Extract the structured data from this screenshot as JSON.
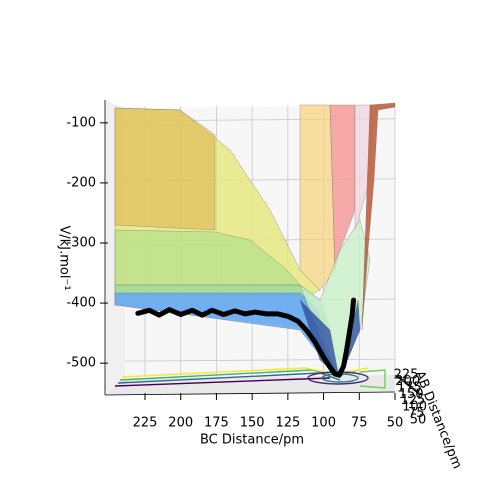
{
  "chart_data": {
    "type": "surface3d",
    "xlabel": "BC Distance/pm",
    "ylabel": "AB Distance/pm",
    "zlabel": "V/kJ.mol⁻¹",
    "xlim": [
      253,
      50
    ],
    "xticks": [
      225,
      200,
      175,
      150,
      125,
      100,
      75,
      50
    ],
    "yticks": [
      50,
      75,
      100,
      125,
      150,
      175,
      200,
      225
    ],
    "zlim": [
      -553,
      -62
    ],
    "zticks": [
      -100,
      -200,
      -300,
      -400,
      -500
    ],
    "trajectory": {
      "color": "#000000",
      "x": [
        230,
        222,
        215,
        208,
        200,
        192,
        185,
        178,
        170,
        162,
        155,
        148,
        140,
        132,
        125,
        118,
        112,
        106,
        100,
        96,
        92,
        89,
        86,
        84,
        82,
        80,
        79
      ],
      "values": [
        -417,
        -412,
        -420,
        -411,
        -419,
        -412,
        -420,
        -412,
        -419,
        -413,
        -418,
        -415,
        -418,
        -418,
        -422,
        -430,
        -445,
        -465,
        -490,
        -505,
        -518,
        -520,
        -505,
        -480,
        -450,
        -420,
        -395
      ]
    }
  }
}
